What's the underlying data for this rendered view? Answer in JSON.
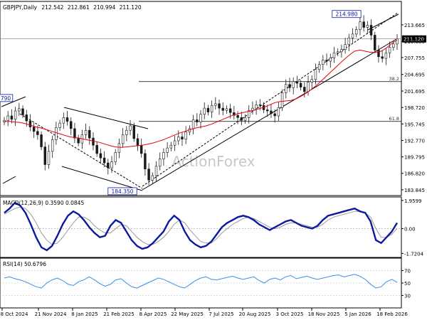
{
  "chart_data": [
    {
      "type": "candlestick",
      "header": {
        "symbol_label": "GBPJPY,Daily",
        "open": "212.542",
        "high": "212.861",
        "low": "210.994",
        "close": "211.120"
      },
      "y_ticks": [
        "213.665",
        "210.680",
        "207.755",
        "204.695",
        "201.695",
        "198.720",
        "195.745",
        "192.770",
        "189.795",
        "186.820",
        "183.845"
      ],
      "ylim": [
        182.8,
        217.9
      ],
      "current_price_label": "211.120",
      "current_price": 211.12,
      "price_series": [
        196.4,
        197.2,
        196.6,
        198.1,
        198.5,
        197.4,
        196.3,
        195.2,
        194.4,
        193.8,
        191.6,
        188.4,
        190.8,
        192.9,
        195.1,
        195.9,
        196.9,
        196.2,
        194.9,
        193.2,
        192.3,
        193.8,
        194.6,
        193.2,
        191.9,
        190.4,
        189.6,
        188.7,
        187.8,
        188.9,
        190.6,
        192.2,
        193.8,
        194.6,
        195.4,
        193.1,
        191.9,
        190.4,
        187.6,
        185.6,
        186.4,
        188.1,
        189.4,
        190.6,
        191.4,
        191.9,
        192.7,
        193.4,
        193.0,
        194.3,
        194.9,
        196.5,
        196.1,
        197.5,
        198.6,
        197.9,
        199.1,
        199.4,
        198.6,
        198.2,
        198.5,
        197.8,
        197.3,
        196.9,
        196.4,
        196.9,
        198.2,
        198.6,
        199.2,
        199.1,
        198.3,
        198.1,
        197.6,
        197.2,
        198.7,
        201.4,
        202.9,
        202.3,
        203.4,
        203.1,
        202.4,
        201.6,
        203.3,
        203.8,
        205.6,
        206.5,
        207.3,
        207.1,
        207.7,
        208.6,
        208.8,
        209.2,
        210.1,
        211.3,
        212.0,
        212.8,
        214.2,
        213.2,
        213.6,
        211.8,
        209.1,
        207.9,
        207.6,
        208.6,
        209.6,
        210.2,
        211.1
      ],
      "ma_series": [
        196.2,
        196.2,
        196.1,
        196.0,
        195.8,
        195.5,
        195.2,
        195.0,
        194.7,
        194.4,
        194.1,
        193.8,
        193.5,
        193.3,
        193.2,
        193.0,
        192.8,
        192.6,
        192.4,
        192.1,
        191.8,
        191.6,
        191.5,
        191.6,
        191.7,
        191.8,
        191.9,
        192.1,
        192.3,
        192.6,
        192.9,
        193.3,
        193.7,
        194.1,
        194.4,
        194.7,
        195.0,
        195.2,
        195.4,
        195.7,
        196.1,
        196.5,
        196.9,
        197.3,
        197.6,
        197.8,
        198.0,
        198.2,
        198.5,
        198.8,
        199.2,
        199.6,
        199.8,
        199.9,
        200.0,
        200.3,
        200.8,
        201.4,
        202.1,
        202.9,
        203.8,
        204.7,
        205.6,
        206.5,
        207.4,
        208.2,
        208.9,
        209.1,
        208.9,
        208.7,
        208.7,
        208.9,
        209.5,
        210.3,
        210.9
      ],
      "ma_series_start": 0,
      "annotations": [
        {
          "label": "214.980",
          "value": 214.98
        },
        {
          "label": "184.350",
          "value": 184.35
        },
        {
          "label": "790",
          "value": 199.79
        }
      ],
      "fib_levels": [
        {
          "label": "38.2",
          "value": 203.4
        },
        {
          "label": "61.8",
          "value": 196.2
        }
      ],
      "watermark": "ActionForex"
    },
    {
      "type": "line",
      "title": "MACD(12,26,9) 0.3590 0.0845",
      "y_ticks": [
        "1.9599",
        "0.00",
        "-1.7204"
      ],
      "ylim": [
        -2.0,
        2.2
      ],
      "zero_label": "0.00",
      "macd": [
        1.1,
        1.4,
        1.8,
        1.6,
        1.1,
        0.3,
        -0.6,
        -1.3,
        -1.5,
        -1.2,
        -0.5,
        0.3,
        0.9,
        1.2,
        1.0,
        0.6,
        0.1,
        -0.3,
        -0.6,
        -0.5,
        0.2,
        0.6,
        0.4,
        -0.2,
        -0.8,
        -1.2,
        -1.4,
        -1.3,
        -1.0,
        -0.6,
        -0.2,
        0.5,
        0.9,
        0.6,
        -0.2,
        -0.8,
        -1.1,
        -1.3,
        -1.2,
        -0.9,
        -0.4,
        0.1,
        0.4,
        0.6,
        0.8,
        0.9,
        0.8,
        0.6,
        0.3,
        0.1,
        -0.1,
        0.1,
        0.3,
        0.5,
        0.6,
        0.4,
        0.2,
        0.1,
        0.0,
        0.2,
        0.6,
        0.9,
        1.0,
        1.1,
        1.2,
        1.3,
        1.4,
        1.2,
        1.1,
        0.5,
        -0.8,
        -1.0,
        -0.6,
        -0.2,
        0.4
      ],
      "signal": [
        1.0,
        1.2,
        1.4,
        1.5,
        1.4,
        1.0,
        0.4,
        -0.3,
        -0.8,
        -1.1,
        -1.0,
        -0.6,
        -0.1,
        0.4,
        0.8,
        0.8,
        0.6,
        0.2,
        -0.1,
        -0.3,
        -0.3,
        0.0,
        0.3,
        0.2,
        -0.2,
        -0.6,
        -0.9,
        -1.1,
        -1.1,
        -0.9,
        -0.6,
        -0.2,
        0.3,
        0.6,
        0.4,
        -0.1,
        -0.5,
        -0.9,
        -1.0,
        -1.0,
        -0.7,
        -0.3,
        0.0,
        0.3,
        0.5,
        0.7,
        0.8,
        0.7,
        0.5,
        0.3,
        0.1,
        0.0,
        0.1,
        0.3,
        0.4,
        0.4,
        0.3,
        0.2,
        0.1,
        0.1,
        0.3,
        0.6,
        0.8,
        0.9,
        1.0,
        1.1,
        1.2,
        1.2,
        1.1,
        0.8,
        0.0,
        -0.6,
        -0.6,
        -0.4,
        0.0
      ]
    },
    {
      "type": "line",
      "title": "RSI(14) 50.6796",
      "y_ticks": [
        "70",
        "50",
        "30"
      ],
      "ylim": [
        10,
        90
      ],
      "rsi": [
        58,
        60,
        57,
        55,
        52,
        48,
        44,
        42,
        50,
        55,
        58,
        54,
        48,
        46,
        52,
        55,
        60,
        55,
        49,
        45,
        48,
        55,
        57,
        50,
        44,
        42,
        46,
        50,
        54,
        58,
        56,
        52,
        48,
        44,
        42,
        48,
        54,
        58,
        60,
        56,
        55,
        57,
        59,
        61,
        58,
        56,
        58,
        60,
        54,
        50,
        56,
        58,
        55,
        60,
        62,
        57,
        59,
        61,
        58,
        56,
        58,
        60,
        62,
        63,
        60,
        62,
        64,
        61,
        56,
        48,
        42,
        44,
        52,
        56,
        51
      ]
    }
  ],
  "x_axis": {
    "labels": [
      "8 Oct 2024",
      "21 Nov 2024",
      "8 Jan 2025",
      "21 Feb 2025",
      "8 Apr 2025",
      "22 May 2025",
      "7 Jul 2025",
      "20 Aug 2025",
      "3 Oct 2025",
      "18 Nov 2025",
      "5 Jan 2026",
      "18 Feb 2026"
    ]
  },
  "colors": {
    "candle": "#1a1a1a",
    "ma": "#e8000b",
    "macd": "#0b1aa0",
    "signal": "#9a9a9a",
    "rsi": "#3a8ee6",
    "price_tag_bg": "#000000",
    "annotation_border": "#0b1aa0",
    "grid": "#dcdcdc"
  }
}
